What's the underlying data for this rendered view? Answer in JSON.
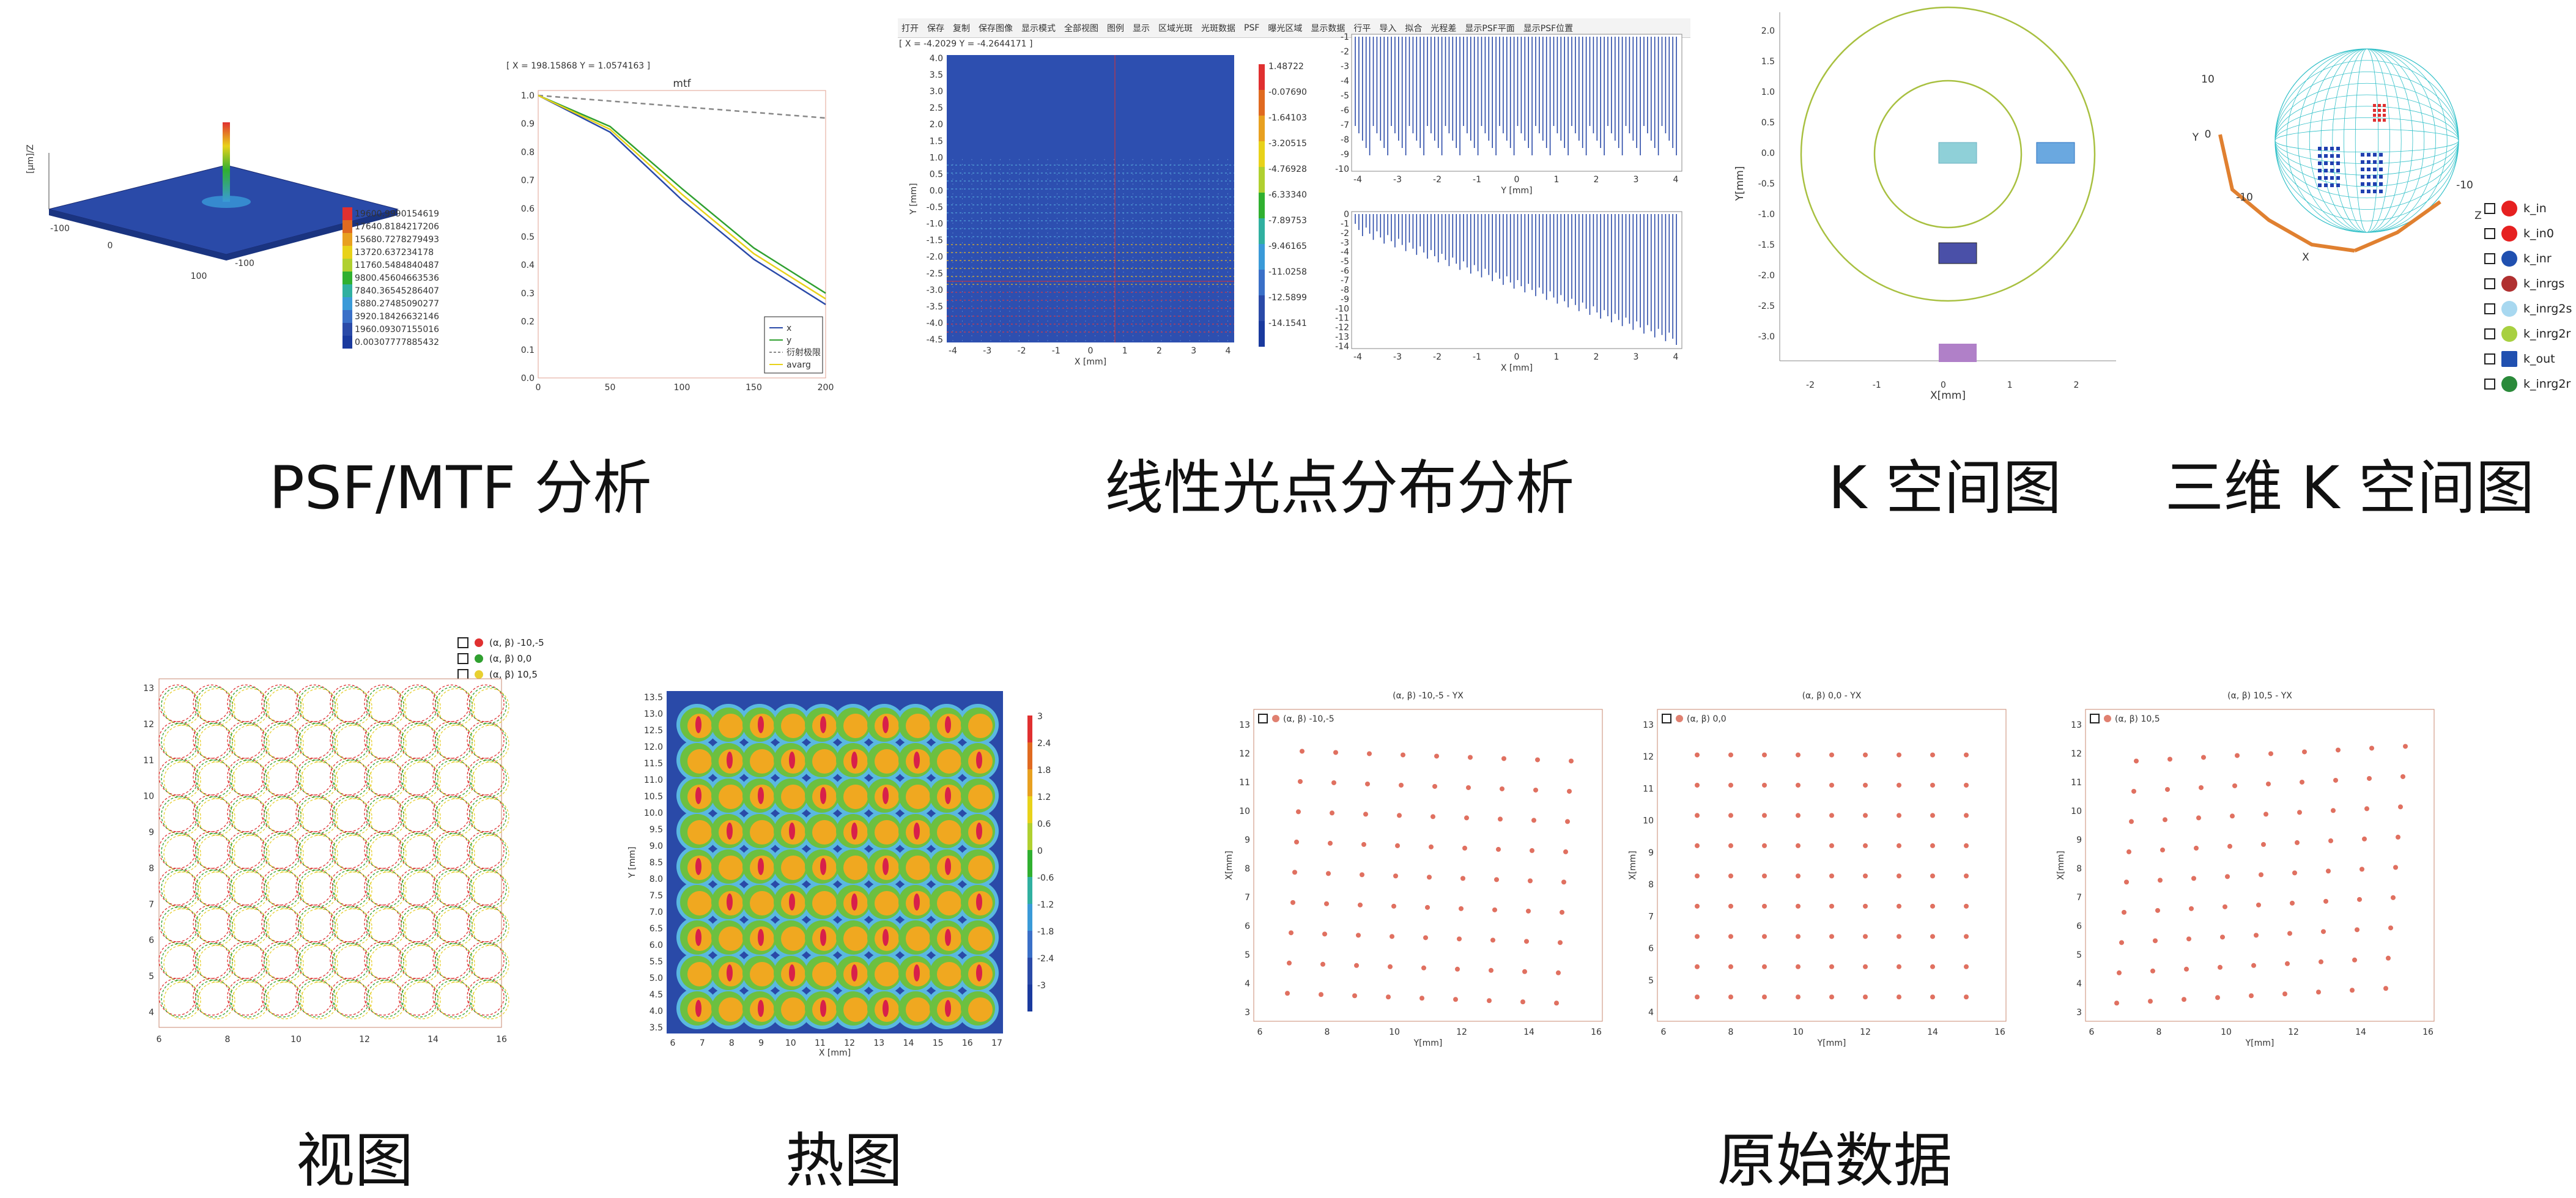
{
  "captions": {
    "psf_mtf": "PSF/MTF 分析",
    "line_spot": "线性光点分布分析",
    "kspace": "K 空间图",
    "kspace3d": "三维 K 空间图",
    "view": "视图",
    "heatmap": "热图",
    "raw": "原始数据"
  },
  "psf": {
    "zlabel": "[µm]/Z",
    "axis_ticks": [
      "-100",
      "0",
      "100",
      "-100"
    ],
    "colorbar": [
      "19600.9990154619",
      "17640.8184217206",
      "15680.7278279493",
      "13720.637234178",
      "11760.5484840487",
      "9800.45604663536",
      "7840.36545286407",
      "5880.27485090277",
      "3920.18426632146",
      "1960.09307155016",
      "0.00307777885432"
    ],
    "colors": {
      "primary": "#1a3a9e",
      "peak": "#e8d21a",
      "mid": "#30b030"
    }
  },
  "mtf": {
    "coord_text": "[ X = 198.15868  Y = 1.0574163 ]",
    "title": "mtf",
    "yticks": [
      "1.0",
      "0.9",
      "0.8",
      "0.7",
      "0.6",
      "0.5",
      "0.4",
      "0.3",
      "0.2",
      "0.1",
      "0.0"
    ],
    "xticks": [
      "0",
      "50",
      "100",
      "150",
      "200"
    ],
    "legend": [
      "x",
      "y",
      "衍射极限",
      "avarg"
    ]
  },
  "line_spot": {
    "toolbar": [
      "打开",
      "保存",
      "复制",
      "保存图像",
      "显示模式",
      "全部视图",
      "图例",
      "显示",
      "区域光斑",
      "光斑数据",
      "PSF",
      "曝光区域",
      "显示数据",
      "行平",
      "导入",
      "拟合",
      "光程差",
      "显示PSF平面",
      "显示PSF位置"
    ],
    "coord_text": "[ X = -4.2029   Y = -4.2644171 ]",
    "left": {
      "ylabel": "Y [mm]",
      "xlabel": "X [mm]",
      "yticks": [
        "4.0",
        "3.5",
        "3.0",
        "2.5",
        "2.0",
        "1.5",
        "1.0",
        "0.5",
        "0.0",
        "-0.5",
        "-1.0",
        "-1.5",
        "-2.0",
        "-2.5",
        "-3.0",
        "-3.5",
        "-4.0",
        "-4.5"
      ],
      "xticks": [
        "-4",
        "-3",
        "-2",
        "-1",
        "0",
        "1",
        "2",
        "3",
        "4"
      ],
      "colorbar": [
        "1.48722",
        "-0.07690",
        "-1.64103",
        "-3.20515",
        "-4.76928",
        "-6.33340",
        "-7.89753",
        "-9.46165",
        "-11.0258",
        "-12.5899",
        "-14.1541"
      ]
    },
    "top_right": {
      "xlabel": "Y [mm]",
      "yticks": [
        "-1",
        "-2",
        "-3",
        "-4",
        "-5",
        "-6",
        "-7",
        "-8",
        "-9",
        "-10"
      ],
      "xticks": [
        "-4",
        "-3",
        "-2",
        "-1",
        "0",
        "1",
        "2",
        "3",
        "4"
      ]
    },
    "bottom_right": {
      "xlabel": "X [mm]",
      "yticks": [
        "0",
        "-1",
        "-2",
        "-3",
        "-4",
        "-5",
        "-6",
        "-7",
        "-8",
        "-9",
        "-10",
        "-11",
        "-12",
        "-13",
        "-14"
      ],
      "xticks": [
        "-4",
        "-3",
        "-2",
        "-1",
        "0",
        "1",
        "2",
        "3",
        "4"
      ]
    }
  },
  "kspace": {
    "ylabel": "Y[mm]",
    "xlabel": "X[mm]",
    "yticks": [
      "2.0",
      "1.5",
      "1.0",
      "0.5",
      "0.0",
      "-0.5",
      "-1.0",
      "-1.5",
      "-2.0",
      "-2.5",
      "-3.0"
    ],
    "xticks": [
      "-2",
      "-1",
      "0",
      "1",
      "2"
    ]
  },
  "kspace3d": {
    "axis_labels": [
      "10",
      "Y",
      "0",
      "-10",
      "-10",
      "Z",
      "X"
    ],
    "legend": [
      {
        "label": "k_in",
        "color": "#e62020"
      },
      {
        "label": "k_in0",
        "color": "#e62020"
      },
      {
        "label": "k_inr",
        "color": "#2050b0"
      },
      {
        "label": "k_inrgs",
        "color": "#b03030"
      },
      {
        "label": "k_inrg2s",
        "color": "#a8d8f0"
      },
      {
        "label": "k_inrg2r",
        "color": "#a8d040"
      },
      {
        "label": "k_out",
        "color": "#2050b0"
      },
      {
        "label": "k_inrg2r",
        "color": "#2a8a3a"
      }
    ]
  },
  "view": {
    "legend": [
      {
        "label": "(α, β) -10,-5",
        "color": "#e03030"
      },
      {
        "label": "(α, β) 0,0",
        "color": "#30a030"
      },
      {
        "label": "(α, β) 10,5",
        "color": "#e8d030"
      }
    ],
    "yticks": [
      "13",
      "12",
      "11",
      "10",
      "9",
      "8",
      "7",
      "6",
      "5",
      "4"
    ],
    "xticks": [
      "6",
      "8",
      "10",
      "12",
      "14",
      "16"
    ]
  },
  "heatmap": {
    "ylabel": "Y [mm]",
    "xlabel": "X [mm]",
    "yticks": [
      "13.5",
      "13.0",
      "12.5",
      "12.0",
      "11.5",
      "11.0",
      "10.5",
      "10.0",
      "9.5",
      "9.0",
      "8.5",
      "8.0",
      "7.5",
      "7.0",
      "6.5",
      "6.0",
      "5.5",
      "5.0",
      "4.5",
      "4.0",
      "3.5"
    ],
    "xticks": [
      "6",
      "7",
      "8",
      "9",
      "10",
      "11",
      "12",
      "13",
      "14",
      "15",
      "16",
      "17"
    ],
    "colorbar": [
      "3",
      "2.4",
      "1.8",
      "1.2",
      "0.6",
      "0",
      "-0.6",
      "-1.2",
      "-1.8",
      "-2.4",
      "-3"
    ]
  },
  "raw": [
    {
      "title": "(α, β) -10,-5 - YX",
      "legend": "(α, β) -10,-5",
      "ylabel": "X[mm]",
      "xlabel": "Y[mm]",
      "yticks": [
        "13",
        "12",
        "11",
        "10",
        "9",
        "8",
        "7",
        "6",
        "5",
        "4",
        "3"
      ],
      "xticks": [
        "6",
        "8",
        "10",
        "12",
        "14",
        "16"
      ]
    },
    {
      "title": "(α, β) 0,0 - YX",
      "legend": "(α, β) 0,0",
      "ylabel": "X[mm]",
      "xlabel": "Y[mm]",
      "yticks": [
        "13",
        "12",
        "11",
        "10",
        "9",
        "8",
        "7",
        "6",
        "5",
        "4"
      ],
      "xticks": [
        "6",
        "8",
        "10",
        "12",
        "14",
        "16"
      ]
    },
    {
      "title": "(α, β) 10,5 - YX",
      "legend": "(α, β) 10,5",
      "ylabel": "X[mm]",
      "xlabel": "Y[mm]",
      "yticks": [
        "13",
        "12",
        "11",
        "10",
        "9",
        "8",
        "7",
        "6",
        "5",
        "4",
        "3"
      ],
      "xticks": [
        "6",
        "8",
        "10",
        "12",
        "14",
        "16"
      ]
    }
  ],
  "chart_data": [
    {
      "type": "line",
      "title": "mtf",
      "x": [
        0,
        50,
        100,
        150,
        200
      ],
      "series": [
        {
          "name": "x",
          "values": [
            1.0,
            0.87,
            0.63,
            0.42,
            0.26
          ]
        },
        {
          "name": "y",
          "values": [
            1.0,
            0.89,
            0.67,
            0.46,
            0.3
          ]
        },
        {
          "name": "衍射极限",
          "values": [
            1.0,
            0.98,
            0.96,
            0.94,
            0.92
          ]
        },
        {
          "name": "avarg",
          "values": [
            1.0,
            0.88,
            0.65,
            0.44,
            0.28
          ]
        }
      ],
      "ylim": [
        0,
        1.0
      ],
      "xlim": [
        0,
        200
      ]
    },
    {
      "type": "scatter",
      "title": "(α, β) 0,0 - YX",
      "xlabel": "Y[mm]",
      "ylabel": "X[mm]",
      "x_values": [
        7,
        8,
        9,
        10,
        11,
        12,
        13,
        14,
        15
      ],
      "y_values": [
        4,
        5,
        6,
        7,
        8,
        9,
        10,
        11,
        12
      ],
      "xlim": [
        6,
        16
      ],
      "ylim": [
        3.5,
        13
      ]
    }
  ]
}
